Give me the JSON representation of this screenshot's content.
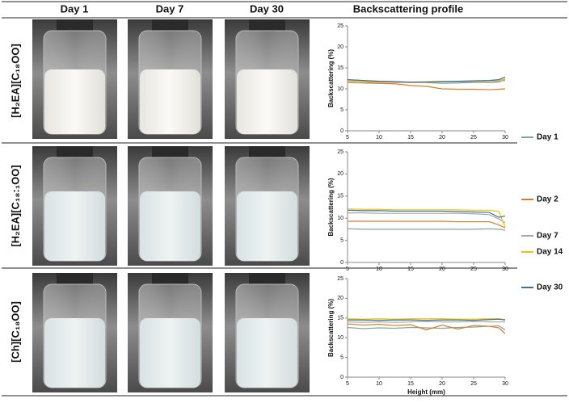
{
  "header": {
    "columns": [
      "Day 1",
      "Day 7",
      "Day 30",
      "Backscattering profile"
    ]
  },
  "row_labels": [
    "[H₂EA][C₁₈OO]",
    "[H₂EA][C₁₈:₁OO]",
    "[Ch][C₁₈OO]"
  ],
  "chart_data": [
    {
      "type": "line",
      "y_label": "Backscattering (%)",
      "x": [
        5,
        7.5,
        10,
        12.5,
        15,
        17.5,
        20,
        22.5,
        25,
        27.5,
        29,
        30
      ],
      "series": [
        {
          "name": "Day 1",
          "color": "#7fa99b",
          "values": [
            12,
            11.8,
            11.8,
            11.7,
            11.5,
            11.5,
            11.3,
            11.4,
            11.5,
            11.5,
            11.6,
            12.2
          ]
        },
        {
          "name": "Day 2",
          "color": "#e07b22",
          "values": [
            11.5,
            11.4,
            11.3,
            11.2,
            10.8,
            10.6,
            10,
            9.9,
            9.9,
            9.8,
            9.9,
            10
          ]
        },
        {
          "name": "Day 7",
          "color": "#a6a6a6",
          "values": [
            11.6,
            11.5,
            11.6,
            11.5,
            11.5,
            11.6,
            11.7,
            11.7,
            11.6,
            11.6,
            11.8,
            12
          ]
        },
        {
          "name": "Day 14",
          "color": "#f2c200",
          "values": [
            11.9,
            11.8,
            11.7,
            11.6,
            11.6,
            11.7,
            11.8,
            11.8,
            11.8,
            11.9,
            12,
            12.4
          ]
        },
        {
          "name": "Day 30",
          "color": "#3a6ea5",
          "values": [
            12.2,
            12,
            11.8,
            11.7,
            11.6,
            11.6,
            11.7,
            11.8,
            11.9,
            12,
            12.2,
            12.8
          ]
        }
      ],
      "xlim": [
        5,
        30
      ],
      "ylim": [
        0,
        25
      ],
      "xticks": [
        5,
        10,
        15,
        20,
        25,
        30
      ],
      "yticks": [
        0,
        5,
        10,
        15,
        20,
        25
      ]
    },
    {
      "type": "line",
      "y_label": "Backscattering (%)",
      "x": [
        5,
        7.5,
        10,
        12.5,
        15,
        17.5,
        20,
        22.5,
        25,
        27.5,
        29,
        30
      ],
      "series": [
        {
          "name": "Day 1",
          "color": "#7fa99b",
          "values": [
            7.6,
            7.5,
            7.5,
            7.5,
            7.5,
            7.5,
            7.5,
            7.5,
            7.5,
            7.6,
            7.5,
            7.3
          ]
        },
        {
          "name": "Day 2",
          "color": "#e07b22",
          "values": [
            9.3,
            9.3,
            9.3,
            9.3,
            9.3,
            9.3,
            9.3,
            9.2,
            9.2,
            9.2,
            8.5,
            7.8
          ]
        },
        {
          "name": "Day 7",
          "color": "#a6a6a6",
          "values": [
            11.2,
            11.2,
            11.1,
            11.1,
            11.1,
            11.1,
            11.1,
            11.1,
            11.0,
            10.8,
            9.8,
            9
          ]
        },
        {
          "name": "Day 14",
          "color": "#f2c200",
          "values": [
            12.1,
            12,
            12,
            11.9,
            11.9,
            11.9,
            11.9,
            11.9,
            11.8,
            11.8,
            11.5,
            8
          ]
        },
        {
          "name": "Day 30",
          "color": "#3a6ea5",
          "values": [
            11.8,
            11.7,
            11.7,
            11.6,
            11.6,
            11.6,
            11.6,
            11.5,
            11.4,
            11.3,
            10.2,
            10.5
          ]
        }
      ],
      "xlim": [
        5,
        30
      ],
      "ylim": [
        0,
        25
      ],
      "xticks": [
        5,
        10,
        15,
        20,
        25,
        30
      ],
      "yticks": [
        0,
        5,
        10,
        15,
        20,
        25
      ]
    },
    {
      "type": "line",
      "y_label": "Backscattering (%)",
      "x_label": "Height (mm)",
      "x": [
        5,
        7.5,
        10,
        12.5,
        15,
        17.5,
        20,
        22.5,
        25,
        27.5,
        29,
        30
      ],
      "series": [
        {
          "name": "Day 1",
          "color": "#7fa99b",
          "values": [
            12.6,
            12.3,
            12.5,
            12.4,
            12.6,
            12.5,
            12.4,
            12.6,
            12.7,
            12.9,
            13,
            12
          ]
        },
        {
          "name": "Day 2",
          "color": "#e07b22",
          "values": [
            13.5,
            13.2,
            13.4,
            13.1,
            13.3,
            12,
            13.2,
            12.2,
            13.1,
            12.9,
            12.5,
            11
          ]
        },
        {
          "name": "Day 7",
          "color": "#a6a6a6",
          "values": [
            14,
            13.9,
            14,
            13.9,
            14,
            14.1,
            14,
            14,
            14.1,
            14,
            14,
            14
          ]
        },
        {
          "name": "Day 14",
          "color": "#f2c200",
          "values": [
            14.8,
            14.7,
            14.8,
            14.7,
            14.8,
            14.8,
            14.8,
            14.7,
            14.7,
            14.8,
            14.8,
            14.6
          ]
        },
        {
          "name": "Day 30",
          "color": "#3a6ea5",
          "values": [
            14.5,
            14.5,
            14.4,
            14.5,
            14.5,
            14.4,
            14.5,
            14.5,
            14.4,
            14.6,
            14.7,
            14.5
          ]
        }
      ],
      "xlim": [
        5,
        30
      ],
      "ylim": [
        0,
        25
      ],
      "xticks": [
        5,
        10,
        15,
        20,
        25,
        30
      ],
      "yticks": [
        0,
        5,
        10,
        15,
        20,
        25
      ]
    }
  ]
}
